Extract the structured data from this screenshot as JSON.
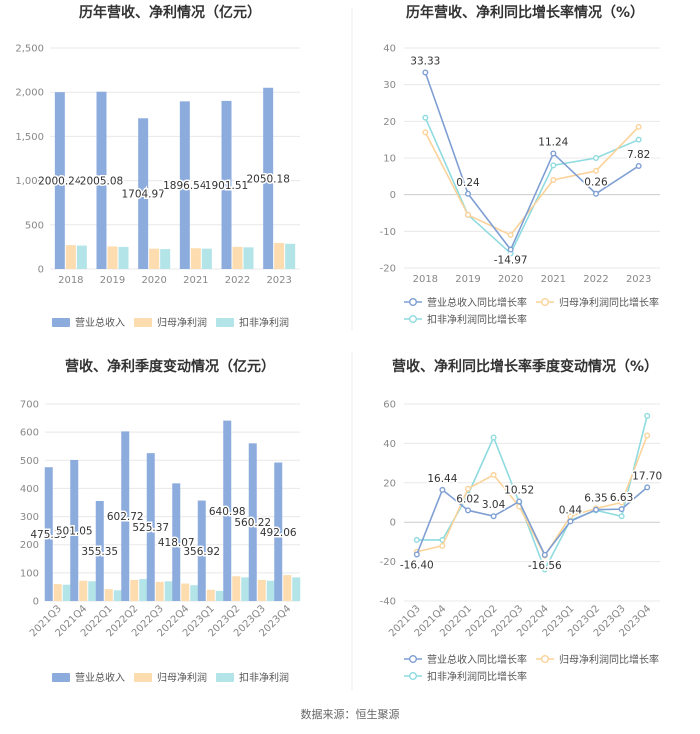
{
  "footer": "数据来源：恒生聚源",
  "colors": {
    "revenue": "#8dacde",
    "net_profit": "#fddcaf",
    "deducted_profit": "#b3e4e8",
    "rev_growth": "#7f9fd3",
    "np_growth": "#fbd39a",
    "dp_growth": "#8fdbe0",
    "grid": "#e8e8e8",
    "axis_text": "#888888"
  },
  "chart_data": [
    {
      "type": "bar",
      "title": "历年营收、净利情况（亿元）",
      "categories": [
        "2018",
        "2019",
        "2020",
        "2021",
        "2022",
        "2023"
      ],
      "ylim": [
        0,
        2500
      ],
      "yticks": [
        "0",
        "500",
        "1,000",
        "1,500",
        "2,000",
        "2,500"
      ],
      "yticks_values": [
        0,
        500,
        1000,
        1500,
        2000,
        2500
      ],
      "series": [
        {
          "name": "营业总收入",
          "values": [
            2000.24,
            2005.08,
            1704.97,
            1896.54,
            1901.51,
            2050.18
          ]
        },
        {
          "name": "归母净利润",
          "values": [
            270,
            255,
            230,
            235,
            250,
            295
          ]
        },
        {
          "name": "扣非净利润",
          "values": [
            265,
            250,
            225,
            230,
            245,
            285
          ]
        }
      ],
      "data_labels": [
        "2000.24",
        "2005.08",
        "1704.97",
        "1896.54",
        "1901.51",
        "2050.18"
      ],
      "legend": [
        "营业总收入",
        "归母净利润",
        "扣非净利润"
      ]
    },
    {
      "type": "line",
      "title": "历年营收、净利同比增长率情况（%）",
      "categories": [
        "2018",
        "2019",
        "2020",
        "2021",
        "2022",
        "2023"
      ],
      "ylim": [
        -20,
        40
      ],
      "yticks": [
        "-20",
        "-10",
        "0",
        "10",
        "20",
        "30",
        "40"
      ],
      "yticks_values": [
        -20,
        -10,
        0,
        10,
        20,
        30,
        40
      ],
      "series": [
        {
          "name": "营业总收入同比增长率",
          "values": [
            33.33,
            0.24,
            -14.97,
            11.24,
            0.26,
            7.82
          ]
        },
        {
          "name": "归母净利润同比增长率",
          "values": [
            17,
            -5.5,
            -11,
            4,
            6.5,
            18.5
          ]
        },
        {
          "name": "扣非净利润同比增长率",
          "values": [
            21,
            -5.5,
            -16,
            8,
            10,
            15
          ]
        }
      ],
      "data_labels": [
        "33.33",
        "0.24",
        "-14.97",
        "11.24",
        "0.26",
        "7.82"
      ],
      "legend": [
        "营业总收入同比增长率",
        "归母净利润同比增长率",
        "扣非净利润同比增长率"
      ]
    },
    {
      "type": "bar",
      "title": "营收、净利季度变动情况（亿元）",
      "categories": [
        "2021Q3",
        "2021Q4",
        "2022Q1",
        "2022Q2",
        "2022Q3",
        "2022Q4",
        "2023Q1",
        "2023Q2",
        "2023Q3",
        "2023Q4"
      ],
      "ylim": [
        0,
        700
      ],
      "yticks": [
        "0",
        "100",
        "200",
        "300",
        "400",
        "500",
        "600",
        "700"
      ],
      "yticks_values": [
        0,
        100,
        200,
        300,
        400,
        500,
        600,
        700
      ],
      "series": [
        {
          "name": "营业总收入",
          "values": [
            475.35,
            501.05,
            355.35,
            602.72,
            525.37,
            418.07,
            356.92,
            640.98,
            560.22,
            492.06
          ]
        },
        {
          "name": "归母净利润",
          "values": [
            60,
            72,
            42,
            75,
            68,
            62,
            40,
            88,
            75,
            92
          ]
        },
        {
          "name": "扣非净利润",
          "values": [
            58,
            70,
            38,
            78,
            70,
            56,
            36,
            84,
            72,
            84
          ]
        }
      ],
      "data_labels": [
        "475.35",
        "501.05",
        "355.35",
        "602.72",
        "525.37",
        "418.07",
        "356.92",
        "640.98",
        "560.22",
        "492.06"
      ],
      "legend": [
        "营业总收入",
        "归母净利润",
        "扣非净利润"
      ]
    },
    {
      "type": "line",
      "title": "营收、净利同比增长率季度变动情况（%）",
      "categories": [
        "2021Q3",
        "2021Q4",
        "2022Q1",
        "2022Q2",
        "2022Q3",
        "2022Q4",
        "2023Q1",
        "2023Q2",
        "2023Q3",
        "2023Q4"
      ],
      "ylim": [
        -40,
        60
      ],
      "yticks": [
        "-40",
        "-20",
        "0",
        "20",
        "40",
        "60"
      ],
      "yticks_values": [
        -40,
        -20,
        0,
        20,
        40,
        60
      ],
      "series": [
        {
          "name": "营业总收入同比增长率",
          "values": [
            -16.4,
            16.44,
            6.02,
            3.04,
            10.52,
            -16.56,
            0.44,
            6.35,
            6.63,
            17.7
          ]
        },
        {
          "name": "归母净利润同比增长率",
          "values": [
            -15,
            -12,
            17,
            24,
            8,
            -17,
            3,
            7,
            10,
            44
          ]
        },
        {
          "name": "扣非净利润同比增长率",
          "values": [
            -9,
            -9,
            14,
            43,
            10,
            -24,
            1,
            6,
            3,
            54
          ]
        }
      ],
      "data_labels": [
        "-16.40",
        "16.44",
        "6.02",
        "3.04",
        "10.52",
        "-16.56",
        "0.44",
        "6.35",
        "6.63",
        "17.70"
      ],
      "legend": [
        "营业总收入同比增长率",
        "归母净利润同比增长率",
        "扣非净利润同比增长率"
      ]
    }
  ]
}
